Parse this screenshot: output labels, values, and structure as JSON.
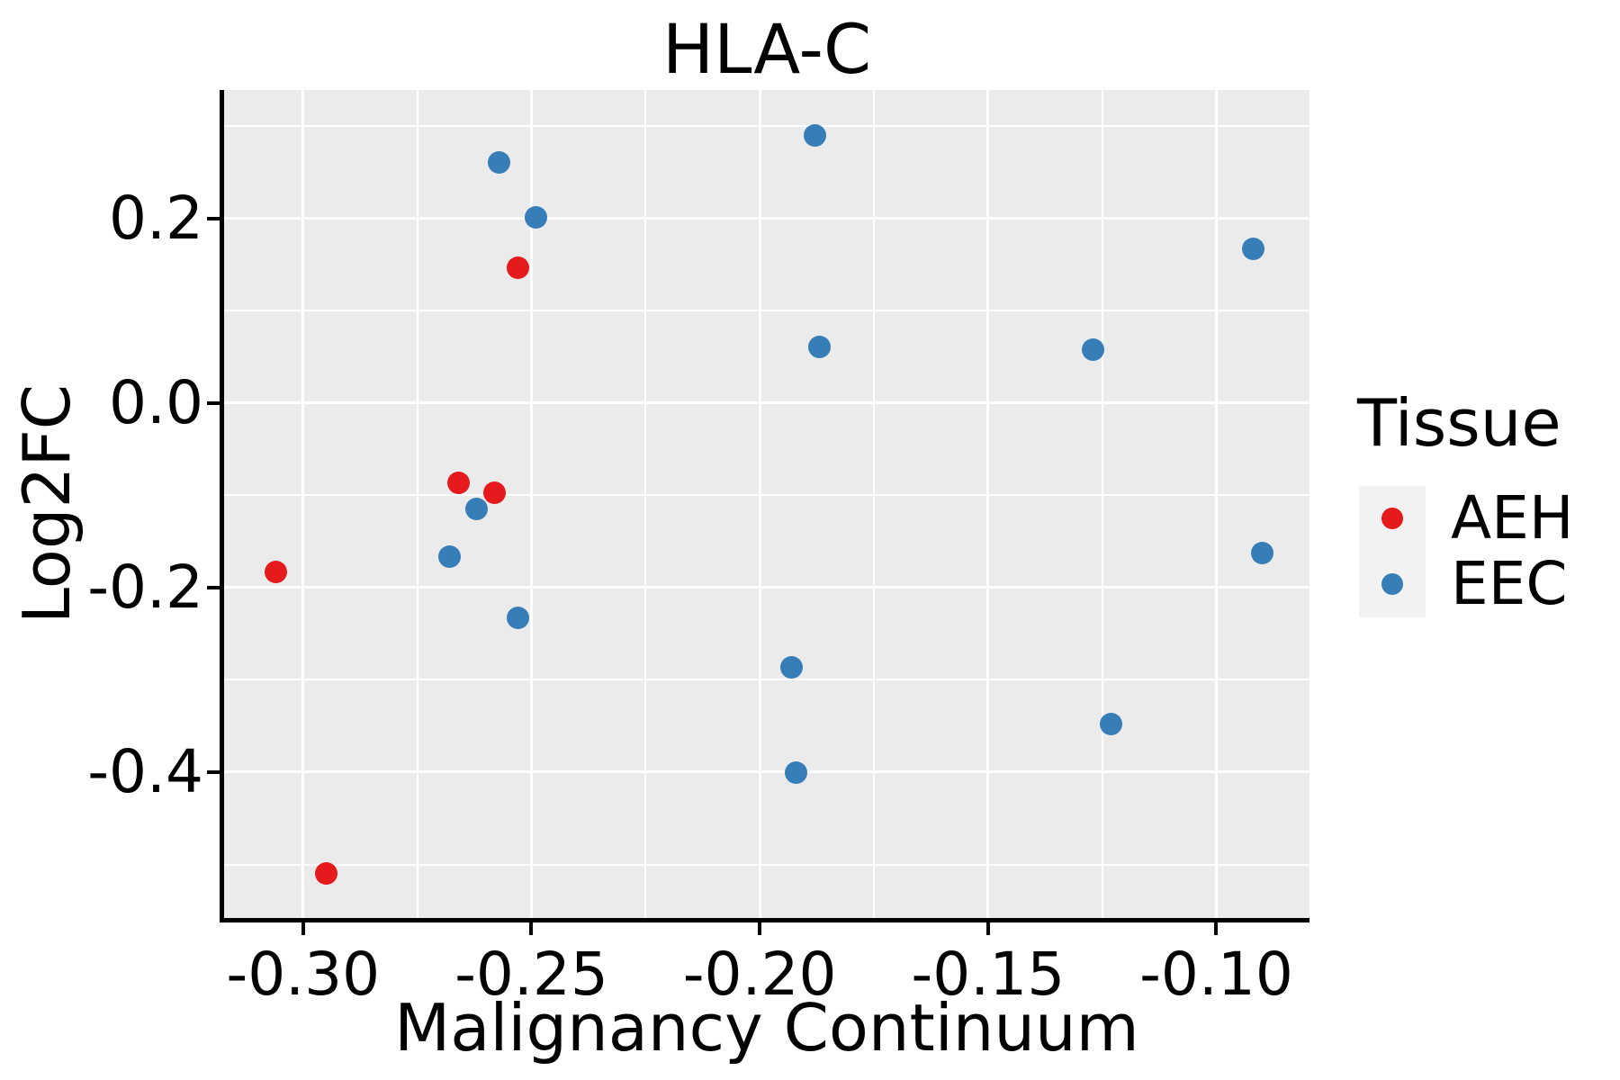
{
  "figure": {
    "title": "HLA-C"
  },
  "axes": {
    "x": {
      "label": "Malignancy Continuum",
      "ticks": [
        -0.3,
        -0.25,
        -0.2,
        -0.15,
        -0.1
      ],
      "tick_labels": [
        "-0.30",
        "-0.25",
        "-0.20",
        "-0.15",
        "-0.10"
      ],
      "minor_ticks": [
        -0.275,
        -0.225,
        -0.175,
        -0.125
      ],
      "range": [
        -0.3173,
        -0.0796
      ]
    },
    "y": {
      "label": "Log2FC",
      "ticks": [
        0.2,
        0.0,
        -0.2,
        -0.4
      ],
      "tick_labels": [
        "0.2",
        "0.0",
        "-0.2",
        "-0.4"
      ],
      "minor_ticks": [
        0.3,
        0.1,
        -0.1,
        -0.3,
        -0.5
      ],
      "range": [
        -0.558,
        0.339
      ]
    }
  },
  "legend": {
    "title": "Tissue",
    "entries": [
      {
        "label": "AEH",
        "color": "#E41A1C"
      },
      {
        "label": "EEC",
        "color": "#377EB8"
      }
    ]
  },
  "colors": {
    "panel_bg": "#EBEBEB",
    "grid": "#FFFFFF",
    "axis": "#000000",
    "legend_key_bg": "#F2F2F2",
    "aeh_red": "#E41A1C",
    "eec_blue": "#377EB8"
  },
  "chart_data": {
    "type": "scatter",
    "title": "HLA-C",
    "xlabel": "Malignancy Continuum",
    "ylabel": "Log2FC",
    "xlim": [
      -0.3173,
      -0.0796
    ],
    "ylim": [
      -0.558,
      0.339
    ],
    "grid": "major+minor",
    "legend_position": "right",
    "series": [
      {
        "name": "AEH",
        "color": "#E41A1C",
        "points": [
          [
            -0.306,
            -0.183
          ],
          [
            -0.295,
            -0.51
          ],
          [
            -0.266,
            -0.087
          ],
          [
            -0.258,
            -0.097
          ],
          [
            -0.253,
            0.146
          ]
        ]
      },
      {
        "name": "EEC",
        "color": "#377EB8",
        "points": [
          [
            -0.268,
            -0.167
          ],
          [
            -0.262,
            -0.115
          ],
          [
            -0.257,
            0.261
          ],
          [
            -0.253,
            -0.233
          ],
          [
            -0.249,
            0.201
          ],
          [
            -0.193,
            -0.286
          ],
          [
            -0.192,
            -0.401
          ],
          [
            -0.188,
            0.29
          ],
          [
            -0.187,
            0.061
          ],
          [
            -0.127,
            0.058
          ],
          [
            -0.123,
            -0.348
          ],
          [
            -0.092,
            0.167
          ],
          [
            -0.09,
            -0.163
          ]
        ]
      }
    ]
  }
}
